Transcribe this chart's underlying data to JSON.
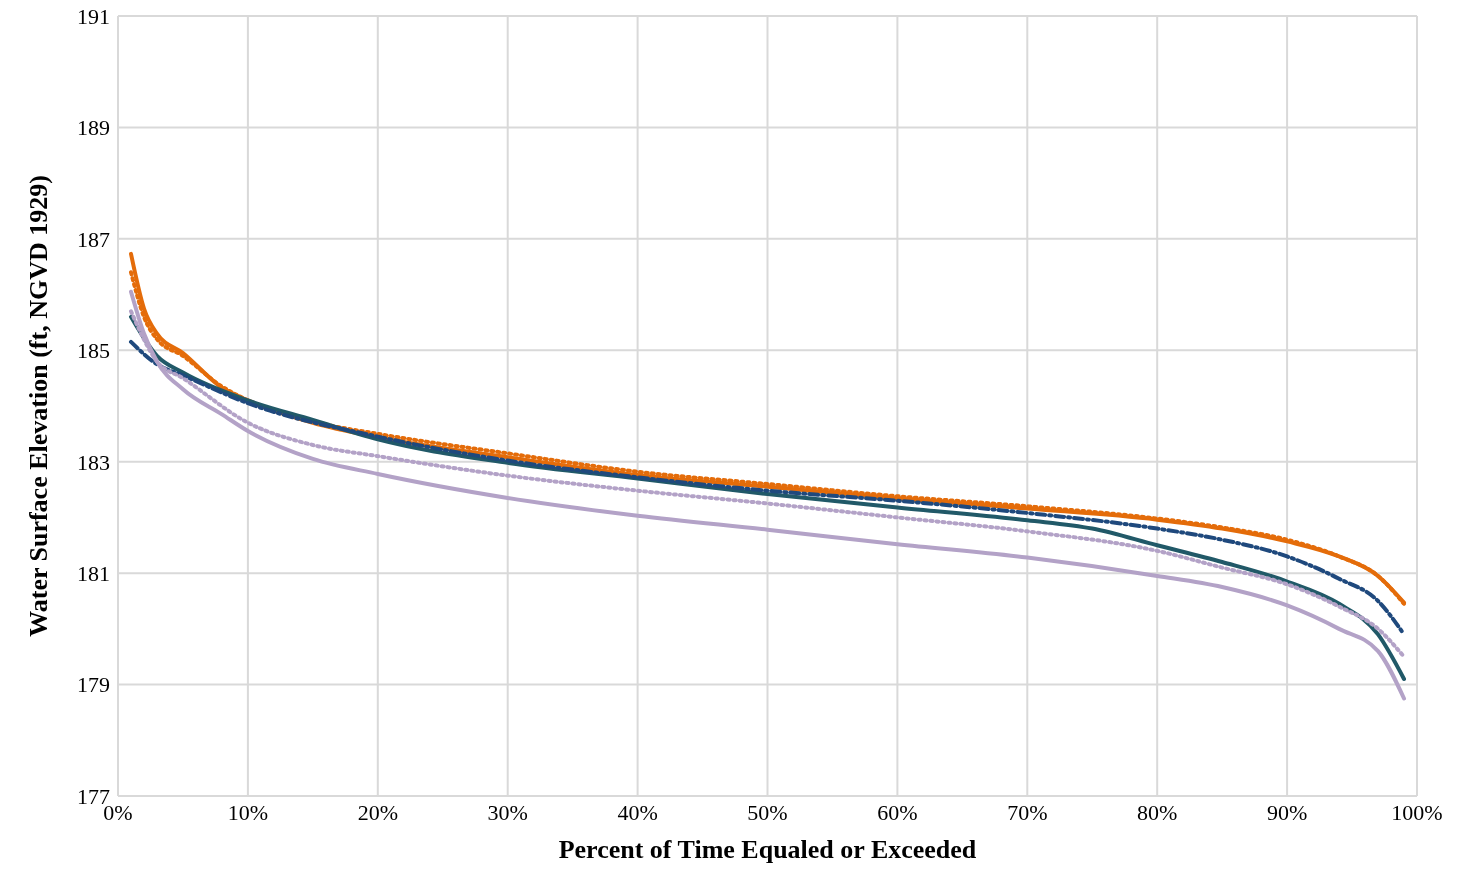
{
  "chart_data": {
    "type": "line",
    "xlabel": "Percent of Time Equaled or Exceeded",
    "ylabel": "Water Surface Elevation (ft, NGVD 1929)",
    "x": [
      1,
      2,
      3,
      5,
      8,
      10,
      15,
      20,
      30,
      40,
      50,
      60,
      70,
      80,
      85,
      90,
      94,
      97,
      99
    ],
    "series": [
      {
        "color": "#e46c0a",
        "line_style": "solid",
        "values": [
          186.73,
          185.75,
          185.3,
          184.95,
          184.33,
          184.1,
          183.7,
          183.44,
          183.08,
          182.76,
          182.55,
          182.34,
          182.16,
          181.96,
          181.8,
          181.57,
          181.3,
          180.95,
          180.47
        ]
      },
      {
        "color": "#e46c0a",
        "line_style": "dotted",
        "values": [
          186.4,
          185.6,
          185.2,
          184.9,
          184.35,
          184.1,
          183.72,
          183.5,
          183.15,
          182.82,
          182.6,
          182.38,
          182.2,
          181.98,
          181.82,
          181.6,
          181.3,
          180.95,
          180.45
        ]
      },
      {
        "color": "#215968",
        "line_style": "solid",
        "x": [
          1,
          3,
          5,
          10,
          15,
          20,
          30,
          40,
          50,
          60,
          70,
          75,
          80,
          85,
          90,
          94,
          97,
          99
        ],
        "values": [
          185.6,
          184.9,
          184.6,
          184.1,
          183.75,
          183.4,
          182.98,
          182.7,
          182.42,
          182.18,
          181.95,
          181.8,
          181.5,
          181.2,
          180.85,
          180.45,
          179.9,
          179.1
        ]
      },
      {
        "color": "#1f497d",
        "line_style": "dashed",
        "x": [
          1,
          3,
          5,
          10,
          20,
          30,
          40,
          50,
          60,
          70,
          80,
          85,
          90,
          94,
          97,
          99
        ],
        "values": [
          185.15,
          184.75,
          184.55,
          184.05,
          183.45,
          183.02,
          182.72,
          182.48,
          182.3,
          182.08,
          181.8,
          181.6,
          181.3,
          180.9,
          180.5,
          179.9
        ]
      },
      {
        "color": "#b3a2c7",
        "line_style": "solid",
        "values": [
          186.05,
          185.3,
          184.8,
          184.3,
          183.85,
          183.55,
          183.05,
          182.78,
          182.35,
          182.03,
          181.78,
          181.52,
          181.28,
          180.95,
          180.75,
          180.42,
          180.0,
          179.6,
          178.75
        ]
      },
      {
        "color": "#b3a2c7",
        "line_style": "dotted",
        "x": [
          1,
          3,
          5,
          10,
          15,
          20,
          30,
          40,
          50,
          60,
          70,
          80,
          85,
          90,
          94,
          97,
          99
        ],
        "values": [
          185.7,
          184.8,
          184.5,
          183.7,
          183.3,
          183.1,
          182.75,
          182.48,
          182.25,
          182.0,
          181.75,
          181.4,
          181.1,
          180.8,
          180.4,
          180.0,
          179.5
        ]
      }
    ],
    "xlim": [
      0,
      100
    ],
    "xticks": [
      {
        "value": 0,
        "label": "0%"
      },
      {
        "value": 10,
        "label": "10%"
      },
      {
        "value": 20,
        "label": "20%"
      },
      {
        "value": 30,
        "label": "30%"
      },
      {
        "value": 40,
        "label": "40%"
      },
      {
        "value": 50,
        "label": "50%"
      },
      {
        "value": 60,
        "label": "60%"
      },
      {
        "value": 70,
        "label": "70%"
      },
      {
        "value": 80,
        "label": "80%"
      },
      {
        "value": 90,
        "label": "90%"
      },
      {
        "value": 100,
        "label": "100%"
      }
    ],
    "ylim": [
      177,
      191
    ],
    "yticks": [
      177,
      179,
      181,
      183,
      185,
      187,
      189,
      191
    ],
    "grid": true,
    "marker": "none"
  }
}
